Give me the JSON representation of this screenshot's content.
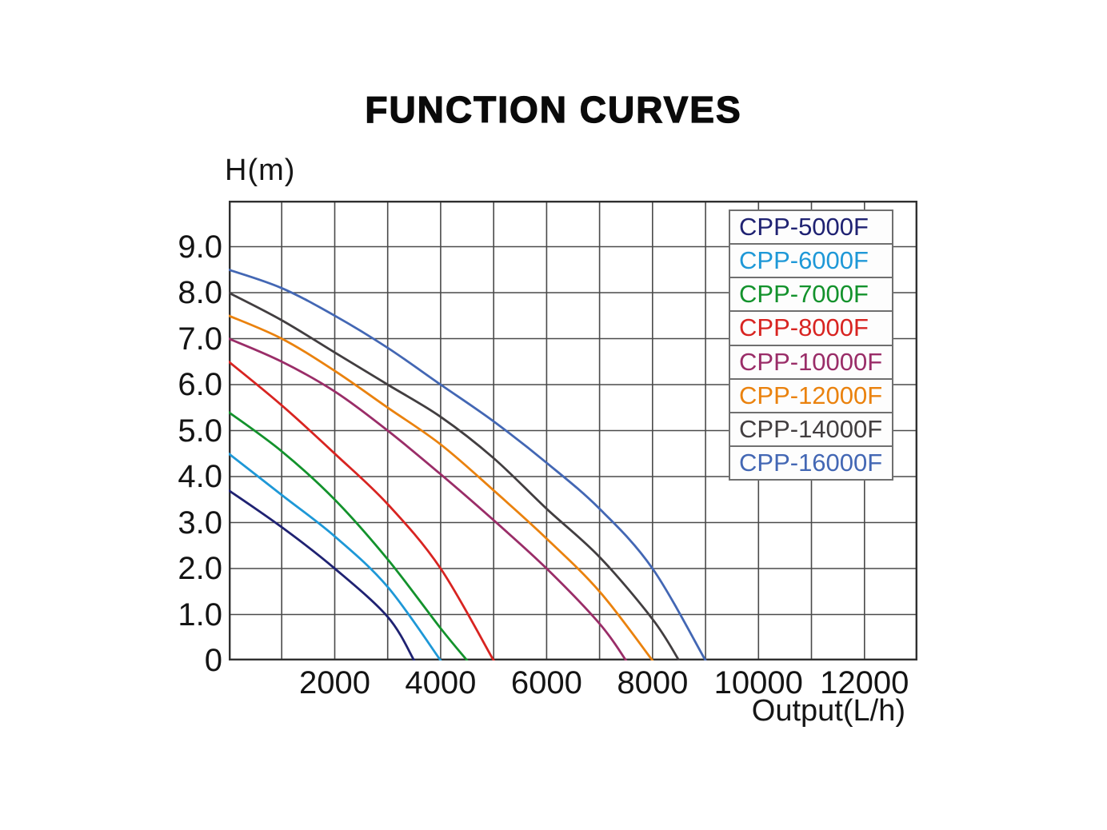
{
  "chart_data": {
    "type": "line",
    "title": "FUNCTION CURVES",
    "xlabel": "Output(L/h)",
    "ylabel": "H(m)",
    "xlim": [
      0,
      13000
    ],
    "ylim": [
      0,
      10
    ],
    "grid": true,
    "x_grid_step": 1000,
    "y_grid_step": 1,
    "legend_position": "top-right",
    "x_ticks": [
      {
        "value": 2000,
        "label": "2000"
      },
      {
        "value": 4000,
        "label": "4000"
      },
      {
        "value": 6000,
        "label": "6000"
      },
      {
        "value": 8000,
        "label": "8000"
      },
      {
        "value": 10000,
        "label": "10000"
      },
      {
        "value": 12000,
        "label": "12000"
      }
    ],
    "y_ticks": [
      {
        "value": 9,
        "label": "9.0"
      },
      {
        "value": 8,
        "label": "8.0"
      },
      {
        "value": 7,
        "label": "7.0"
      },
      {
        "value": 6,
        "label": "6.0"
      },
      {
        "value": 5,
        "label": "5.0"
      },
      {
        "value": 4,
        "label": "4.0"
      },
      {
        "value": 3,
        "label": "3.0"
      },
      {
        "value": 2,
        "label": "2.0"
      },
      {
        "value": 1,
        "label": "1.0"
      },
      {
        "value": 0,
        "label": "0"
      }
    ],
    "series": [
      {
        "name": "CPP-5000F",
        "color": "#1F2272",
        "points": [
          [
            0,
            3.7
          ],
          [
            1000,
            2.9
          ],
          [
            2000,
            2.0
          ],
          [
            3000,
            0.95
          ],
          [
            3500,
            0
          ]
        ]
      },
      {
        "name": "CPP-6000F",
        "color": "#1E98D7",
        "points": [
          [
            0,
            4.5
          ],
          [
            1000,
            3.6
          ],
          [
            2000,
            2.7
          ],
          [
            3000,
            1.6
          ],
          [
            4000,
            0
          ]
        ]
      },
      {
        "name": "CPP-7000F",
        "color": "#13922C",
        "points": [
          [
            0,
            5.4
          ],
          [
            1000,
            4.55
          ],
          [
            2000,
            3.5
          ],
          [
            3000,
            2.2
          ],
          [
            4000,
            0.7
          ],
          [
            4500,
            0
          ]
        ]
      },
      {
        "name": "CPP-8000F",
        "color": "#D82421",
        "points": [
          [
            0,
            6.5
          ],
          [
            1000,
            5.55
          ],
          [
            2000,
            4.5
          ],
          [
            3000,
            3.4
          ],
          [
            4000,
            2.0
          ],
          [
            5000,
            0
          ]
        ]
      },
      {
        "name": "CPP-10000F",
        "color": "#9A2D68",
        "points": [
          [
            0,
            7.0
          ],
          [
            1000,
            6.5
          ],
          [
            2000,
            5.85
          ],
          [
            3000,
            5.0
          ],
          [
            4000,
            4.05
          ],
          [
            5000,
            3.05
          ],
          [
            6000,
            2.0
          ],
          [
            7000,
            0.8
          ],
          [
            7500,
            0
          ]
        ]
      },
      {
        "name": "CPP-12000F",
        "color": "#EA820E",
        "points": [
          [
            0,
            7.5
          ],
          [
            1000,
            7.0
          ],
          [
            2000,
            6.3
          ],
          [
            3000,
            5.5
          ],
          [
            4000,
            4.7
          ],
          [
            5000,
            3.7
          ],
          [
            6000,
            2.65
          ],
          [
            7000,
            1.5
          ],
          [
            8000,
            0
          ]
        ]
      },
      {
        "name": "CPP-14000F",
        "color": "#423E40",
        "points": [
          [
            0,
            8.0
          ],
          [
            1000,
            7.4
          ],
          [
            2000,
            6.7
          ],
          [
            3000,
            6.0
          ],
          [
            4000,
            5.3
          ],
          [
            5000,
            4.4
          ],
          [
            6000,
            3.3
          ],
          [
            7000,
            2.25
          ],
          [
            8000,
            0.9
          ],
          [
            8500,
            0
          ]
        ]
      },
      {
        "name": "CPP-16000F",
        "color": "#4367B4",
        "points": [
          [
            0,
            8.5
          ],
          [
            1000,
            8.1
          ],
          [
            2000,
            7.5
          ],
          [
            3000,
            6.8
          ],
          [
            4000,
            6.0
          ],
          [
            5000,
            5.2
          ],
          [
            6000,
            4.3
          ],
          [
            7000,
            3.3
          ],
          [
            8000,
            2.0
          ],
          [
            9000,
            0
          ]
        ]
      }
    ]
  }
}
